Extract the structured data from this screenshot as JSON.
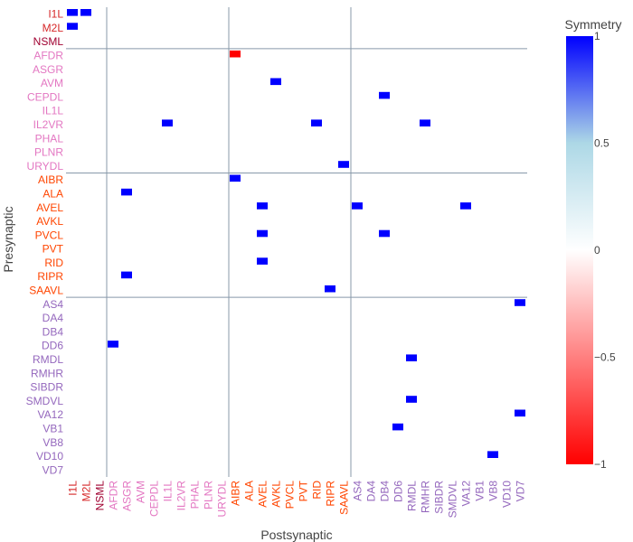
{
  "chart_data": {
    "type": "heatmap",
    "xlabel": "Postsynaptic",
    "ylabel": "Presynaptic",
    "colorbar": {
      "title": "Symmetry",
      "range": [
        -1,
        1
      ],
      "ticks": [
        "1",
        "0.5",
        "0",
        "−0.5",
        "−1"
      ],
      "tick_values": [
        1,
        0.5,
        0,
        -0.5,
        -1
      ],
      "colors": {
        "positive": "#0000ff",
        "mid_positive": "#add8e6",
        "zero": "#ffffff",
        "negative": "#ff0000"
      }
    },
    "group_colors": {
      "pharyngeal": "#d62728",
      "sensory": "#e377c2",
      "interneuron": "#ff4500",
      "motor": "#9467bd"
    },
    "y_labels": [
      {
        "label": "I1L",
        "group": "pharyngeal"
      },
      {
        "label": "M2L",
        "group": "pharyngeal"
      },
      {
        "label": "NSML",
        "group": "pharyngeal_dark"
      },
      {
        "label": "AFDR",
        "group": "sensory"
      },
      {
        "label": "ASGR",
        "group": "sensory"
      },
      {
        "label": "AVM",
        "group": "sensory"
      },
      {
        "label": "CEPDL",
        "group": "sensory"
      },
      {
        "label": "IL1L",
        "group": "sensory"
      },
      {
        "label": "IL2VR",
        "group": "sensory"
      },
      {
        "label": "PHAL",
        "group": "sensory"
      },
      {
        "label": "PLNR",
        "group": "sensory"
      },
      {
        "label": "URYDL",
        "group": "sensory"
      },
      {
        "label": "AIBR",
        "group": "interneuron"
      },
      {
        "label": "ALA",
        "group": "interneuron"
      },
      {
        "label": "AVEL",
        "group": "interneuron"
      },
      {
        "label": "AVKL",
        "group": "interneuron"
      },
      {
        "label": "PVCL",
        "group": "interneuron"
      },
      {
        "label": "PVT",
        "group": "interneuron"
      },
      {
        "label": "RID",
        "group": "interneuron"
      },
      {
        "label": "RIPR",
        "group": "interneuron"
      },
      {
        "label": "SAAVL",
        "group": "interneuron"
      },
      {
        "label": "AS4",
        "group": "motor"
      },
      {
        "label": "DA4",
        "group": "motor"
      },
      {
        "label": "DB4",
        "group": "motor"
      },
      {
        "label": "DD6",
        "group": "motor"
      },
      {
        "label": "RMDL",
        "group": "motor"
      },
      {
        "label": "RMHR",
        "group": "motor"
      },
      {
        "label": "SIBDR",
        "group": "motor"
      },
      {
        "label": "SMDVL",
        "group": "motor"
      },
      {
        "label": "VA12",
        "group": "motor"
      },
      {
        "label": "VB1",
        "group": "motor"
      },
      {
        "label": "VB8",
        "group": "motor"
      },
      {
        "label": "VD10",
        "group": "motor"
      },
      {
        "label": "VD7",
        "group": "motor"
      }
    ],
    "x_labels": [
      {
        "label": "I1L",
        "group": "pharyngeal"
      },
      {
        "label": "M2L",
        "group": "pharyngeal"
      },
      {
        "label": "NSML",
        "group": "pharyngeal_dark"
      },
      {
        "label": "AFDR",
        "group": "sensory"
      },
      {
        "label": "ASGR",
        "group": "sensory"
      },
      {
        "label": "AVM",
        "group": "sensory"
      },
      {
        "label": "CEPDL",
        "group": "sensory"
      },
      {
        "label": "IL1L",
        "group": "sensory"
      },
      {
        "label": "IL2VR",
        "group": "sensory"
      },
      {
        "label": "PHAL",
        "group": "sensory"
      },
      {
        "label": "PLNR",
        "group": "sensory"
      },
      {
        "label": "URYDL",
        "group": "sensory"
      },
      {
        "label": "AIBR",
        "group": "interneuron"
      },
      {
        "label": "ALA",
        "group": "interneuron"
      },
      {
        "label": "AVEL",
        "group": "interneuron"
      },
      {
        "label": "AVKL",
        "group": "interneuron"
      },
      {
        "label": "PVCL",
        "group": "interneuron"
      },
      {
        "label": "PVT",
        "group": "interneuron"
      },
      {
        "label": "RID",
        "group": "interneuron"
      },
      {
        "label": "RIPR",
        "group": "interneuron"
      },
      {
        "label": "SAAVL",
        "group": "interneuron"
      },
      {
        "label": "AS4",
        "group": "motor"
      },
      {
        "label": "DA4",
        "group": "motor"
      },
      {
        "label": "DB4",
        "group": "motor"
      },
      {
        "label": "DD6",
        "group": "motor"
      },
      {
        "label": "RMDL",
        "group": "motor"
      },
      {
        "label": "RMHR",
        "group": "motor"
      },
      {
        "label": "SIBDR",
        "group": "motor"
      },
      {
        "label": "SMDVL",
        "group": "motor"
      },
      {
        "label": "VA12",
        "group": "motor"
      },
      {
        "label": "VB1",
        "group": "motor"
      },
      {
        "label": "VB8",
        "group": "motor"
      },
      {
        "label": "VD10",
        "group": "motor"
      },
      {
        "label": "VD7",
        "group": "motor"
      }
    ],
    "group_boundaries_after": [
      "NSML",
      "URYDL",
      "SAAVL"
    ],
    "grid": false,
    "legend_position": "right",
    "blocks": [
      {
        "row": "I1L",
        "col": "I1L",
        "value": 1
      },
      {
        "row": "I1L",
        "col": "M2L",
        "value": 1
      },
      {
        "row": "M2L",
        "col": "I1L",
        "value": 1
      },
      {
        "row": "AFDR",
        "col": "AIBR",
        "value": -1
      },
      {
        "row": "AVM",
        "col": "AVKL",
        "value": 1
      },
      {
        "row": "CEPDL",
        "col": "DB4",
        "value": 1
      },
      {
        "row": "IL2VR",
        "col": "IL1L",
        "value": 1
      },
      {
        "row": "IL2VR",
        "col": "RID",
        "value": 1
      },
      {
        "row": "IL2VR",
        "col": "RMHR",
        "value": 1
      },
      {
        "row": "URYDL",
        "col": "SAAVL",
        "value": 1
      },
      {
        "row": "AIBR",
        "col": "AIBR",
        "value": 1
      },
      {
        "row": "ALA",
        "col": "ASGR",
        "value": 1
      },
      {
        "row": "AVEL",
        "col": "AS4",
        "value": 1
      },
      {
        "row": "AVEL",
        "col": "AVEL",
        "value": 1
      },
      {
        "row": "AVEL",
        "col": "VA12",
        "value": 1
      },
      {
        "row": "PVCL",
        "col": "AVEL",
        "value": 1
      },
      {
        "row": "PVCL",
        "col": "DB4",
        "value": 1
      },
      {
        "row": "RID",
        "col": "AVEL",
        "value": 1
      },
      {
        "row": "RIPR",
        "col": "ASGR",
        "value": 1
      },
      {
        "row": "SAAVL",
        "col": "RIPR",
        "value": 1
      },
      {
        "row": "DD6",
        "col": "AFDR",
        "value": 1
      },
      {
        "row": "RMDL",
        "col": "RMDL",
        "value": 1
      },
      {
        "row": "SMDVL",
        "col": "RMDL",
        "value": 1
      },
      {
        "row": "VB1",
        "col": "DD6",
        "value": 1
      },
      {
        "row": "VD10",
        "col": "VB8",
        "value": 1
      },
      {
        "row": "AS4",
        "col": "VD7",
        "value": 1
      },
      {
        "row": "VA12",
        "col": "VD7",
        "value": 1
      }
    ]
  }
}
